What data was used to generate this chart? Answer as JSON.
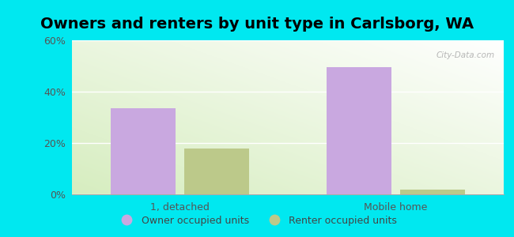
{
  "title": "Owners and renters by unit type in Carlsborg, WA",
  "categories": [
    "1, detached",
    "Mobile home"
  ],
  "owner_values": [
    33.5,
    49.5
  ],
  "renter_values": [
    18.0,
    2.0
  ],
  "owner_color": "#c9a8e0",
  "renter_color": "#bcc98a",
  "background_outer": "#00e8f0",
  "ylim": [
    0,
    60
  ],
  "yticks": [
    0,
    20,
    40,
    60
  ],
  "ytick_labels": [
    "0%",
    "20%",
    "40%",
    "60%"
  ],
  "bar_width": 0.3,
  "legend_labels": [
    "Owner occupied units",
    "Renter occupied units"
  ],
  "title_fontsize": 14,
  "watermark": "City-Data.com"
}
